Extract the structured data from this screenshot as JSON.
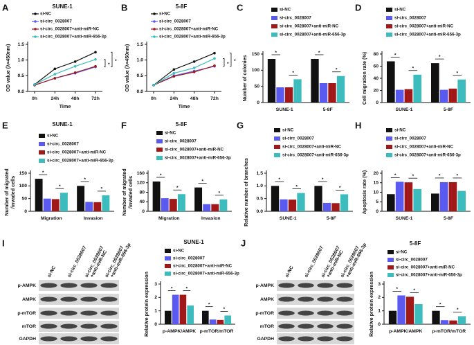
{
  "chart_data": [
    {
      "panel": "A",
      "type": "line",
      "title": "SUNE-1",
      "ylabel": [
        "OD value (λ=450nm)"
      ],
      "xlabel": "Time",
      "categories": [
        "0h",
        "24h",
        "48h",
        "72h"
      ],
      "ylim": [
        0,
        1.5
      ],
      "yticks": [
        {
          "value": 0,
          "label": "0.0"
        },
        0.5,
        {
          "value": 1,
          "label": "1.0"
        },
        1.5
      ],
      "series": [
        {
          "name": "si-NC",
          "color": "#111111",
          "values": [
            0.22,
            0.72,
            0.95,
            1.25
          ]
        },
        {
          "name": "si-circ_0028007",
          "color": "#5a5af0",
          "values": [
            0.2,
            0.42,
            0.58,
            0.78
          ]
        },
        {
          "name": "si-circ_0028007+anti-miR-NC",
          "color": "#a01818",
          "values": [
            0.2,
            0.42,
            0.6,
            0.8
          ]
        },
        {
          "name": "si-circ_0028007+anti-miR-656-3p",
          "color": "#3cbcbc",
          "values": [
            0.22,
            0.55,
            0.8,
            1.02
          ]
        }
      ],
      "annotations": [
        "*",
        "*"
      ]
    },
    {
      "panel": "B",
      "type": "line",
      "title": "5-8F",
      "ylabel": [
        "OD value (λ=450nm)"
      ],
      "xlabel": "Time",
      "categories": [
        "0h",
        "24h",
        "48h",
        "72h"
      ],
      "ylim": [
        0,
        1.5
      ],
      "yticks": [
        {
          "value": 0,
          "label": "0.0"
        },
        0.5,
        {
          "value": 1,
          "label": "1.0"
        },
        1.5
      ],
      "series": [
        {
          "name": "si-NC",
          "color": "#111111",
          "values": [
            0.2,
            0.7,
            0.95,
            1.22
          ]
        },
        {
          "name": "si-circ_0028007",
          "color": "#5a5af0",
          "values": [
            0.2,
            0.5,
            0.65,
            0.8
          ]
        },
        {
          "name": "si-circ_0028007+anti-miR-NC",
          "color": "#a01818",
          "values": [
            0.2,
            0.48,
            0.62,
            0.82
          ]
        },
        {
          "name": "si-circ_0028007+anti-miR-656-3p",
          "color": "#3cbcbc",
          "values": [
            0.2,
            0.58,
            0.75,
            1.05
          ]
        }
      ],
      "annotations": [
        "*",
        "*"
      ]
    },
    {
      "panel": "C",
      "type": "bar",
      "ylabel": [
        "Number of colonies"
      ],
      "categories": [
        "SUNE-1",
        "5-8F"
      ],
      "ylim": [
        0,
        150
      ],
      "yticks": [
        0,
        50,
        100,
        150
      ],
      "series": [
        {
          "name": "si-NC",
          "color": "#111111",
          "values": [
            135,
            135
          ]
        },
        {
          "name": "si-circ_0028007",
          "color": "#5a5af0",
          "values": [
            47,
            60
          ]
        },
        {
          "name": "si-circ_0028007+anti-miR-NC",
          "color": "#a01818",
          "values": [
            47,
            60
          ]
        },
        {
          "name": "si-circ_0028007+anti-miR-656-3p",
          "color": "#3cbcbc",
          "values": [
            72,
            82
          ]
        }
      ],
      "annotations": [
        "*",
        "*",
        "*",
        "*"
      ]
    },
    {
      "panel": "D",
      "type": "bar",
      "ylabel": [
        "Cell migration rate (%)"
      ],
      "categories": [
        "SUNE-1",
        "5-8F"
      ],
      "ylim": [
        0,
        80
      ],
      "yticks": [
        0,
        20,
        40,
        60,
        80
      ],
      "series": [
        {
          "name": "si-NC",
          "color": "#111111",
          "values": [
            68,
            65
          ]
        },
        {
          "name": "si-circ_0028007",
          "color": "#5a5af0",
          "values": [
            21,
            21
          ]
        },
        {
          "name": "si-circ_0028007+anti-miR-NC",
          "color": "#a01818",
          "values": [
            22,
            23
          ]
        },
        {
          "name": "si-circ_0028007+anti-miR-656-3p",
          "color": "#3cbcbc",
          "values": [
            46,
            38
          ]
        }
      ],
      "annotations": [
        "*",
        "*",
        "*",
        "*"
      ]
    },
    {
      "panel": "E",
      "type": "bar",
      "title": "SUNE-1",
      "ylabel": [
        "Number of migrated",
        "/invaded cells"
      ],
      "categories": [
        "Migration",
        "Invasion"
      ],
      "ylim": [
        0,
        150
      ],
      "yticks": [
        0,
        50,
        100,
        150
      ],
      "series": [
        {
          "name": "si-NC",
          "color": "#111111",
          "values": [
            128,
            100
          ]
        },
        {
          "name": "si-circ_0028007",
          "color": "#5a5af0",
          "values": [
            50,
            37
          ]
        },
        {
          "name": "si-circ_0028007+anti-miR-NC",
          "color": "#a01818",
          "values": [
            48,
            36
          ]
        },
        {
          "name": "si-circ_0028007+anti-miR-656-3p",
          "color": "#3cbcbc",
          "values": [
            73,
            63
          ]
        }
      ],
      "annotations": [
        "*",
        "*",
        "*",
        "*"
      ]
    },
    {
      "panel": "F",
      "type": "bar",
      "title": "5-8F",
      "ylabel": [
        "Number of migrated",
        "/invaded cells"
      ],
      "categories": [
        "Migration",
        "Invasion"
      ],
      "ylim": [
        0,
        160
      ],
      "yticks": [
        0,
        40,
        80,
        120,
        160
      ],
      "series": [
        {
          "name": "si-NC",
          "color": "#111111",
          "values": [
            125,
            100
          ]
        },
        {
          "name": "si-circ_0028007",
          "color": "#5a5af0",
          "values": [
            55,
            30
          ]
        },
        {
          "name": "si-circ_0028007+anti-miR-NC",
          "color": "#a01818",
          "values": [
            52,
            30
          ]
        },
        {
          "name": "si-circ_0028007+anti-miR-656-3p",
          "color": "#3cbcbc",
          "values": [
            72,
            50
          ]
        }
      ],
      "annotations": [
        "*",
        "*",
        "*",
        "*"
      ]
    },
    {
      "panel": "G",
      "type": "bar",
      "ylabel": [
        "Relative number of branches"
      ],
      "categories": [
        "SUNE-1",
        "5-8F"
      ],
      "ylim": [
        0,
        1.5
      ],
      "yticks": [
        {
          "value": 0,
          "label": "0.0"
        },
        0.5,
        {
          "value": 1,
          "label": "1.0"
        },
        1.5
      ],
      "series": [
        {
          "name": "si-NC",
          "color": "#111111",
          "values": [
            1.0,
            1.0
          ]
        },
        {
          "name": "si-circ_0028007",
          "color": "#5a5af0",
          "values": [
            0.47,
            0.33
          ]
        },
        {
          "name": "si-circ_0028007+anti-miR-NC",
          "color": "#a01818",
          "values": [
            0.46,
            0.32
          ]
        },
        {
          "name": "si-circ_0028007+anti-miR-656-3p",
          "color": "#3cbcbc",
          "values": [
            0.72,
            0.67
          ]
        }
      ],
      "annotations": [
        "*",
        "*",
        "*",
        "*"
      ]
    },
    {
      "panel": "H",
      "type": "bar",
      "ylabel": [
        "Apoptosis rate (%)"
      ],
      "categories": [
        "SUNE-1",
        "5-8F"
      ],
      "ylim": [
        0,
        20
      ],
      "yticks": [
        0,
        5,
        10,
        15,
        20
      ],
      "series": [
        {
          "name": "si-NC",
          "color": "#111111",
          "values": [
            9,
            9.3
          ]
        },
        {
          "name": "si-circ_0028007",
          "color": "#5a5af0",
          "values": [
            15.5,
            15.3
          ]
        },
        {
          "name": "si-circ_0028007+anti-miR-NC",
          "color": "#a01818",
          "values": [
            15.2,
            15.3
          ]
        },
        {
          "name": "si-circ_0028007+anti-miR-656-3p",
          "color": "#3cbcbc",
          "values": [
            11.7,
            10.7
          ]
        }
      ],
      "annotations": [
        "*",
        "*",
        "*",
        "*"
      ]
    },
    {
      "type": "bar",
      "title": "SUNE-1",
      "ylabel": [
        "Relative protein expression"
      ],
      "categories": [
        "p-AMPK/AMPK",
        "p-mTOR/mTOR"
      ],
      "ylim": [
        0,
        3
      ],
      "yticks": [
        0,
        1,
        2,
        3
      ],
      "series": [
        {
          "name": "si-NC",
          "color": "#111111",
          "values": [
            1.0,
            1.0
          ]
        },
        {
          "name": "si-circ_0028007",
          "color": "#5a5af0",
          "values": [
            2.2,
            0.35
          ]
        },
        {
          "name": "si-circ_0028007+anti-miR-NC",
          "color": "#a01818",
          "values": [
            2.2,
            0.32
          ]
        },
        {
          "name": "si-circ_0028007+anti-miR-656-3p",
          "color": "#3cbcbc",
          "values": [
            1.4,
            0.65
          ]
        }
      ],
      "annotations": [
        "*",
        "*",
        "*",
        "*"
      ]
    },
    {
      "type": "bar",
      "title": "5-8F",
      "ylabel": [
        "Relative protein expression"
      ],
      "categories": [
        "p-AMPK/AMPK",
        "p-mTOR/mTOR"
      ],
      "ylim": [
        0,
        3
      ],
      "yticks": [
        0,
        1,
        2,
        3
      ],
      "series": [
        {
          "name": "si-NC",
          "color": "#111111",
          "values": [
            1.0,
            1.0
          ]
        },
        {
          "name": "si-circ_0028007",
          "color": "#5a5af0",
          "values": [
            2.15,
            0.3
          ]
        },
        {
          "name": "si-circ_0028007+anti-miR-NC",
          "color": "#a01818",
          "values": [
            2.05,
            0.28
          ]
        },
        {
          "name": "si-circ_0028007+anti-miR-656-3p",
          "color": "#3cbcbc",
          "values": [
            1.5,
            0.6
          ]
        }
      ],
      "annotations": [
        "*",
        "*",
        "*",
        "*"
      ]
    }
  ],
  "blots": [
    {
      "panel": "I",
      "lanes": [
        [
          "si-NC"
        ],
        [
          "si-circ_0028007"
        ],
        [
          "si-circ_0028007",
          "+anti-miR-NC"
        ],
        [
          "si-circ_0028007",
          "+anti-miR-656-3p"
        ]
      ],
      "rows": [
        "p-AMPK",
        "AMPK",
        "p-mTOR",
        "mTOR",
        "GAPDH"
      ]
    },
    {
      "panel": "J",
      "lanes": [
        [
          "si-NC"
        ],
        [
          "si-circ_0028007"
        ],
        [
          "si-circ_0028007",
          "+anti-miR-NC"
        ],
        [
          "si-circ_0028007",
          "+anti-miR-656-3p"
        ]
      ],
      "rows": [
        "p-AMPK",
        "AMPK",
        "p-mTOR",
        "mTOR",
        "GAPDH"
      ]
    }
  ]
}
